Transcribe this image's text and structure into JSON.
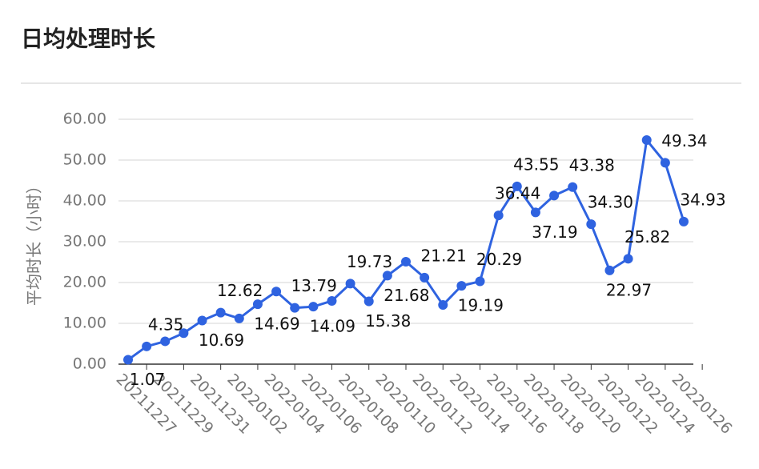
{
  "chart_data": {
    "type": "line",
    "title": "日均处理时长",
    "y_label": "平均时长（小时）",
    "categories": [
      "20211227",
      null,
      "20211229",
      null,
      "20211231",
      null,
      "20220102",
      null,
      "20220104",
      null,
      "20220106",
      null,
      "20220108",
      null,
      "20220110",
      null,
      "20220112",
      null,
      "20220114",
      null,
      "20220116",
      null,
      "20220118",
      null,
      "20220120",
      null,
      "20220122",
      null,
      "20220124",
      null,
      "20220126"
    ],
    "series": [
      {
        "name": "平均时长",
        "color": "#2f63e0",
        "values": [
          1.07,
          4.35,
          5.6,
          7.6,
          10.69,
          12.62,
          11.2,
          14.69,
          17.8,
          13.79,
          14.09,
          15.5,
          19.73,
          15.38,
          21.68,
          25.1,
          21.21,
          14.5,
          19.19,
          20.29,
          36.44,
          43.55,
          37.19,
          41.3,
          43.38,
          34.3,
          22.97,
          25.82,
          54.9,
          49.34,
          34.93
        ],
        "value_labels": [
          "1.07",
          "4.35",
          null,
          null,
          "10.69",
          "12.62",
          null,
          "14.69",
          null,
          "13.79",
          "14.09",
          null,
          "19.73",
          "15.38",
          "21.68",
          null,
          "21.21",
          null,
          "19.19",
          "20.29",
          "36.44",
          "43.55",
          "37.19",
          null,
          "43.38",
          "34.30",
          "22.97",
          "25.82",
          null,
          "49.34",
          "34.93"
        ]
      }
    ],
    "ylim": [
      0,
      60
    ],
    "yticks": [
      {
        "value": 0,
        "label": "0.00"
      },
      {
        "value": 10,
        "label": "10.00"
      },
      {
        "value": 20,
        "label": "20.00"
      },
      {
        "value": 30,
        "label": "30.00"
      },
      {
        "value": 40,
        "label": "40.00"
      },
      {
        "value": 50,
        "label": "50.00"
      },
      {
        "value": 60,
        "label": "60.00"
      }
    ],
    "grid": true
  }
}
